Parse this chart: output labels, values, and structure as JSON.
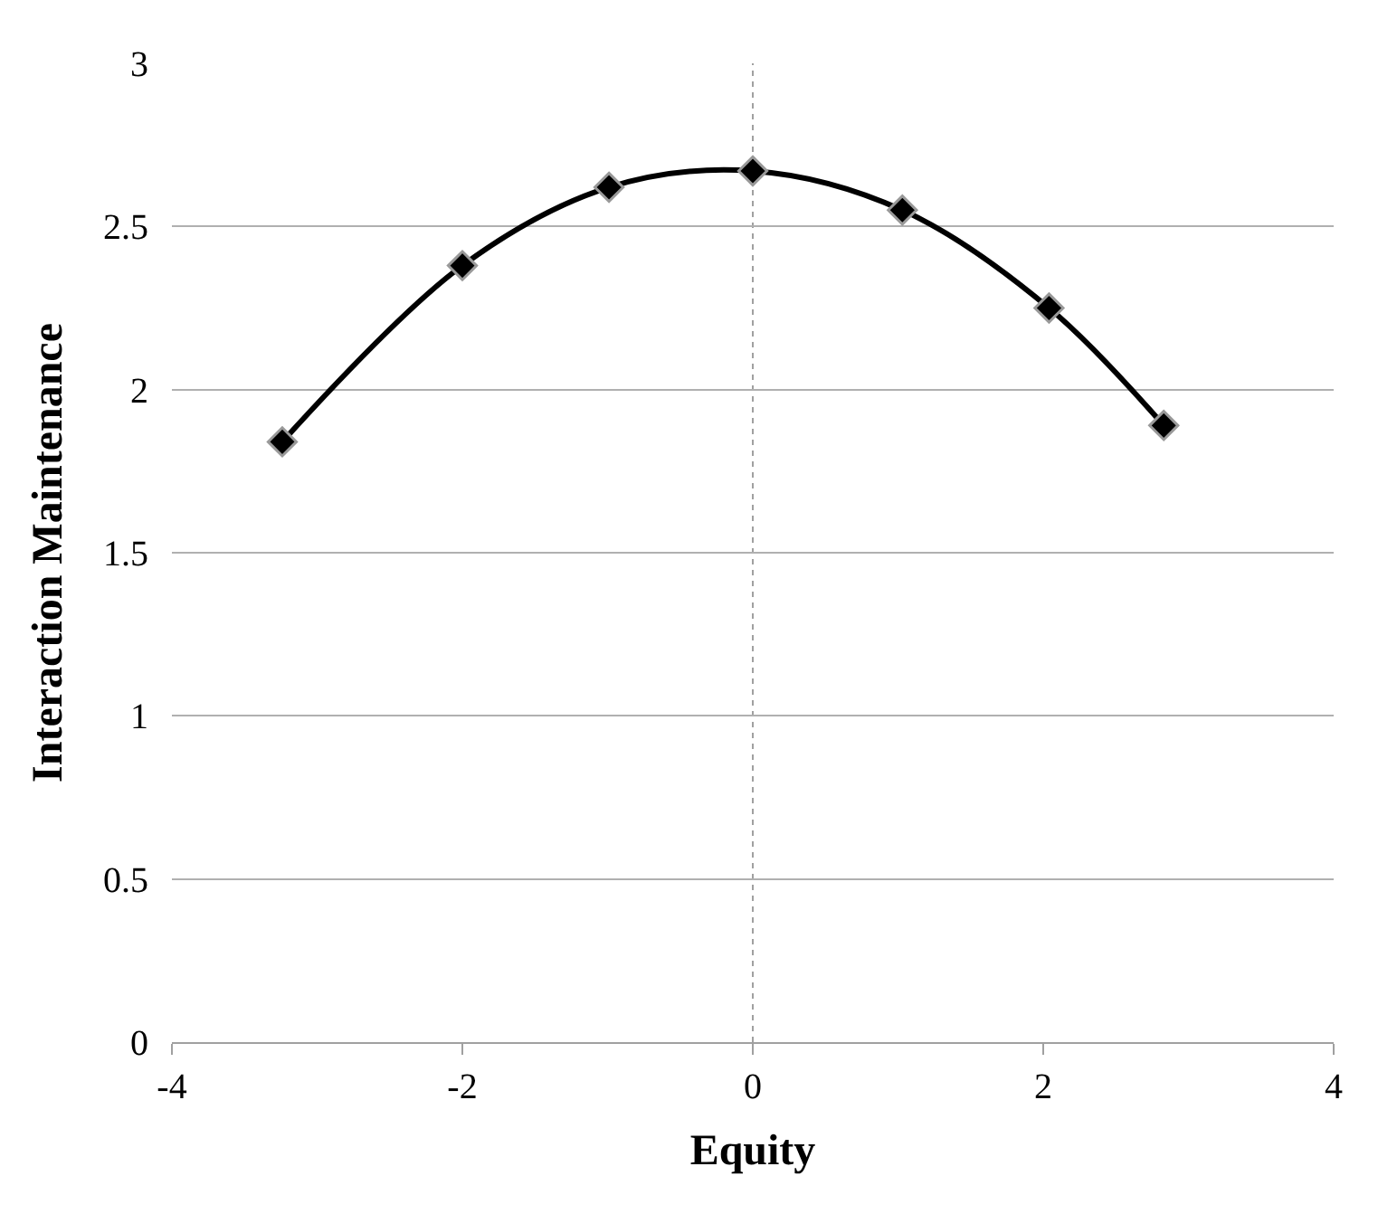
{
  "chart_data": {
    "type": "line",
    "xlabel": "Equity",
    "ylabel": "Interaction Maintenance",
    "x": [
      -3.24,
      -2.0,
      -0.99,
      0.0,
      1.03,
      2.04,
      2.83
    ],
    "series": [
      {
        "color": "#000000",
        "values": [
          1.84,
          2.38,
          2.62,
          2.67,
          2.55,
          2.25,
          1.89
        ]
      }
    ],
    "xlim": [
      -4,
      4
    ],
    "xticks": [
      -4,
      -2,
      0,
      2,
      4
    ],
    "ylim": [
      0,
      3
    ],
    "yticks": [
      0,
      0.5,
      1,
      1.5,
      2,
      2.5,
      3
    ],
    "grid": "y",
    "marker": "diamond",
    "line_style": "solid",
    "legend": false,
    "ref_lines": [
      {
        "axis": "x",
        "value": 0,
        "color": "#a0a0a0",
        "line_style": "dotted"
      }
    ]
  }
}
